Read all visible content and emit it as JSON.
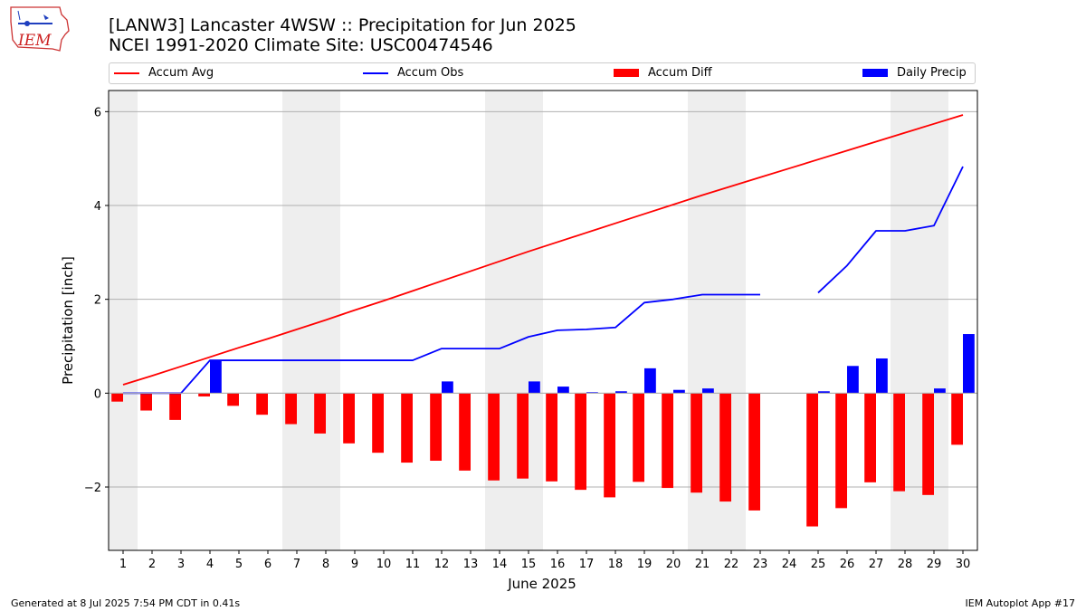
{
  "header": {
    "logo_text": "IEM",
    "title_line1": "[LANW3] Lancaster 4WSW :: Precipitation for Jun 2025",
    "title_line2": "NCEI 1991-2020 Climate Site: USC00474546"
  },
  "legend": {
    "accum_avg": "Accum Avg",
    "accum_obs": "Accum Obs",
    "accum_diff": "Accum Diff",
    "daily_precip": "Daily Precip"
  },
  "footer": {
    "generated": "Generated at 8 Jul 2025 7:54 PM CDT in 0.41s",
    "app": "IEM Autoplot App #17"
  },
  "colors": {
    "accum_avg": "#ff0000",
    "accum_obs": "#0000ff",
    "accum_diff": "#ff0000",
    "daily_precip": "#0000ff",
    "weekend_shade": "#eeeeee",
    "grid": "#b0b0b0"
  },
  "chart_data": {
    "type": "bar",
    "xlabel": "June 2025",
    "ylabel": "Precipitation [inch]",
    "ylim": [
      -3.35,
      6.45
    ],
    "yticks": [
      -2,
      0,
      2,
      4,
      6
    ],
    "x": [
      1,
      2,
      3,
      4,
      5,
      6,
      7,
      8,
      9,
      10,
      11,
      12,
      13,
      14,
      15,
      16,
      17,
      18,
      19,
      20,
      21,
      22,
      23,
      24,
      25,
      26,
      27,
      28,
      29,
      30
    ],
    "weekend_days": [
      1,
      7,
      8,
      14,
      15,
      21,
      22,
      28,
      29
    ],
    "grid": "horizontal",
    "legend_position": "top",
    "series": [
      {
        "name": "Accum Avg",
        "kind": "line",
        "values": [
          0.18,
          0.37,
          0.57,
          0.77,
          0.97,
          1.16,
          1.36,
          1.56,
          1.77,
          1.97,
          2.18,
          2.39,
          2.6,
          2.81,
          3.02,
          3.22,
          3.42,
          3.62,
          3.82,
          4.02,
          4.22,
          4.41,
          4.6,
          4.79,
          4.98,
          5.17,
          5.36,
          5.55,
          5.74,
          5.93
        ]
      },
      {
        "name": "Accum Obs",
        "kind": "line",
        "values": [
          0.0,
          0.0,
          0.0,
          0.7,
          0.7,
          0.7,
          0.7,
          0.7,
          0.7,
          0.7,
          0.7,
          0.95,
          0.95,
          0.95,
          1.2,
          1.34,
          1.36,
          1.4,
          1.93,
          2.0,
          2.1,
          2.1,
          2.1,
          null,
          2.14,
          2.72,
          3.46,
          3.46,
          3.57,
          4.83
        ]
      },
      {
        "name": "Accum Diff",
        "kind": "bar",
        "values": [
          -0.18,
          -0.37,
          -0.57,
          -0.07,
          -0.27,
          -0.46,
          -0.66,
          -0.86,
          -1.07,
          -1.27,
          -1.48,
          -1.44,
          -1.65,
          -1.86,
          -1.82,
          -1.88,
          -2.06,
          -2.22,
          -1.89,
          -2.02,
          -2.12,
          -2.31,
          -2.5,
          null,
          -2.84,
          -2.45,
          -1.9,
          -2.09,
          -2.17,
          -1.1
        ]
      },
      {
        "name": "Daily Precip",
        "kind": "bar",
        "values": [
          0,
          0,
          0,
          0.7,
          0,
          0,
          0,
          0,
          0,
          0,
          0,
          0.25,
          0,
          0,
          0.25,
          0.14,
          0.02,
          0.04,
          0.53,
          0.07,
          0.1,
          0,
          0,
          0,
          0.04,
          0.58,
          0.74,
          0,
          0.1,
          1.26
        ]
      }
    ]
  }
}
